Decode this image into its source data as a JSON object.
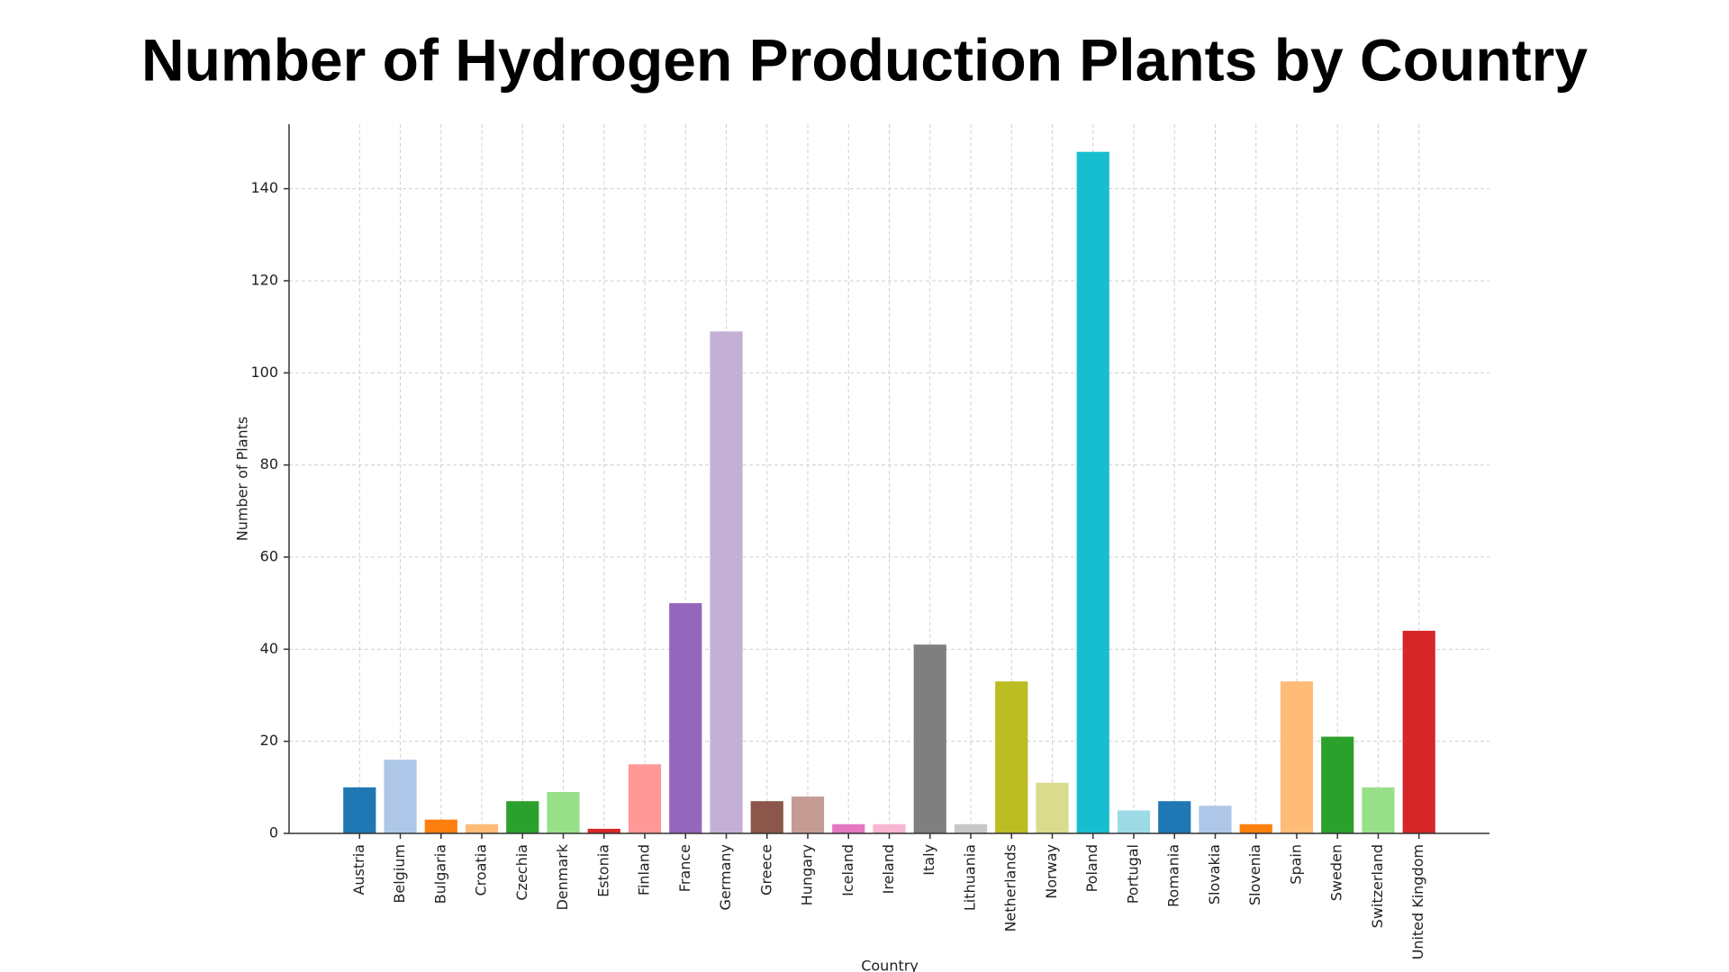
{
  "chart_data": {
    "type": "bar",
    "title": "Number of Hydrogen Production Plants by Country",
    "x_label": "Country",
    "y_label": "Number of Plants",
    "categories": [
      "Austria",
      "Belgium",
      "Bulgaria",
      "Croatia",
      "Czechia",
      "Denmark",
      "Estonia",
      "Finland",
      "France",
      "Germany",
      "Greece",
      "Hungary",
      "Iceland",
      "Ireland",
      "Italy",
      "Lithuania",
      "Netherlands",
      "Norway",
      "Poland",
      "Portugal",
      "Romania",
      "Slovakia",
      "Slovenia",
      "Spain",
      "Sweden",
      "Switzerland",
      "United Kingdom"
    ],
    "values": [
      10,
      16,
      3,
      2,
      7,
      9,
      1,
      15,
      50,
      109,
      7,
      8,
      2,
      2,
      41,
      2,
      33,
      11,
      148,
      5,
      7,
      6,
      2,
      33,
      21,
      10,
      44
    ],
    "colors": [
      "#1f77b4",
      "#aec7e8",
      "#ff7f0e",
      "#ffbb78",
      "#2ca02c",
      "#98df8a",
      "#d62728",
      "#ff9896",
      "#9467bd",
      "#c5b0d5",
      "#8c564b",
      "#c49c94",
      "#e377c2",
      "#f7b6d2",
      "#7f7f7f",
      "#c7c7c7",
      "#bcbd22",
      "#dbdb8d",
      "#17becf",
      "#9edae5",
      "#1f77b4",
      "#aec7e8",
      "#ff7f0e",
      "#ffbb78",
      "#2ca02c",
      "#98df8a",
      "#d62728"
    ],
    "ylim": [
      0,
      154
    ],
    "yticks": [
      0,
      20,
      40,
      60,
      80,
      100,
      120,
      140
    ],
    "grid": true
  }
}
